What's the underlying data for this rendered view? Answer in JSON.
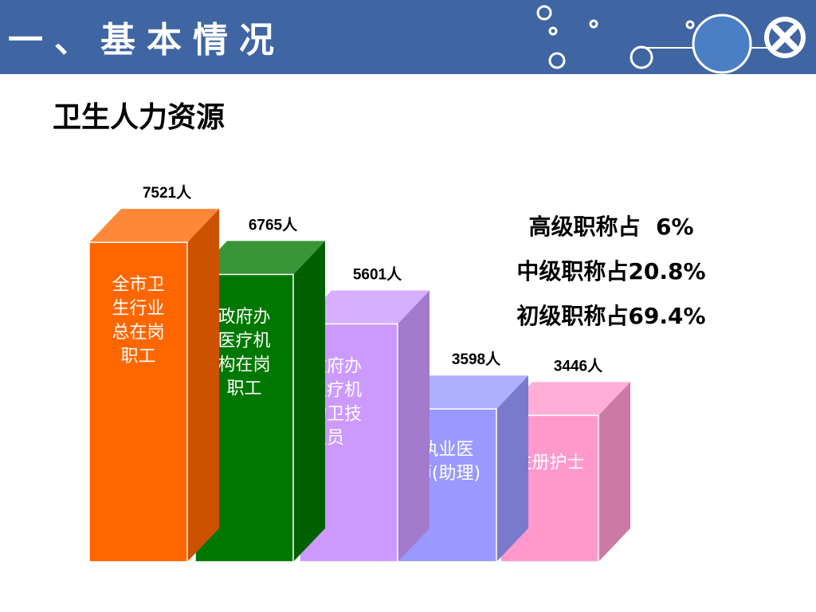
{
  "header": {
    "title": "一、基本情况"
  },
  "page": {
    "subtitle": "卫生人力资源"
  },
  "stats": [
    {
      "text": "高级职称占  6%"
    },
    {
      "text": "中级职称占20.8%"
    },
    {
      "text": "初级职称占69.4%"
    }
  ],
  "chart_data": {
    "type": "bar",
    "categories": [
      "全市卫生行业总在岗职工",
      "政府办医疗机构在岗职工",
      "政府办医疗机构卫技人员",
      "执业医师(助理)",
      "注册护士"
    ],
    "category_lines": [
      [
        "全市卫",
        "生行业",
        "总在岗",
        "职工"
      ],
      [
        "政府办",
        "医疗机",
        "构在岗",
        "职工"
      ],
      [
        "政府办",
        "医疗机",
        "构卫技",
        "人员"
      ],
      [
        "执业医",
        "师(助理)"
      ],
      [
        "注册护士"
      ]
    ],
    "values": [
      7521,
      6765,
      5601,
      3598,
      3446
    ],
    "value_labels": [
      "7521人",
      "6765人",
      "5601人",
      "3598人",
      "3446人"
    ],
    "unit": "人",
    "colors": [
      "#ff6600",
      "#007800",
      "#cc99ff",
      "#9999ff",
      "#ff99cc"
    ],
    "bar_style": "3d"
  }
}
